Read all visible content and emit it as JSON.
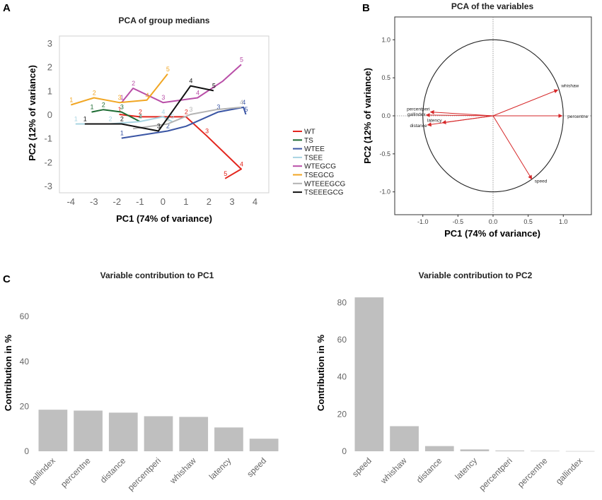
{
  "panel_labels": {
    "a": "A",
    "b": "B",
    "c": "C"
  },
  "colors": {
    "WT": "#e3261e",
    "TS": "#1d6b32",
    "WTEE": "#3a55a4",
    "TSEE": "#a8d4e2",
    "WTEGCG": "#b94fa8",
    "TSEGCG": "#f1a623",
    "WTEEEGCG": "#b3b3b3",
    "TSEEEGCG": "#111111",
    "bar": "#bfbfbf",
    "arrow": "#d62728",
    "circle": "#222222",
    "ref": "#888888"
  },
  "chart_data": [
    {
      "id": "A",
      "type": "line",
      "title": "PCA of group medians",
      "xlabel": "PC1 (74% of variance)",
      "ylabel": "PC2 (12% of variance)",
      "xlim": [
        -4.5,
        4.6
      ],
      "ylim": [
        -3.3,
        3.3
      ],
      "xticks": [
        -4,
        -3,
        -2,
        -1,
        0,
        1,
        2,
        3,
        4
      ],
      "yticks": [
        -3,
        -2,
        -1,
        0,
        1,
        2,
        3
      ],
      "series": [
        {
          "name": "WT",
          "x": [
            -1.9,
            -1.0,
            0.2,
            1.0,
            1.9,
            3.4,
            2.7
          ],
          "y": [
            0.0,
            -0.1,
            -0.1,
            -0.1,
            -0.9,
            -2.3,
            -2.7
          ],
          "labels": [
            "1",
            "2",
            "",
            "2",
            "3",
            "4",
            "5"
          ]
        },
        {
          "name": "TS",
          "x": [
            -3.1,
            -2.6,
            -1.8,
            -1.0
          ],
          "y": [
            0.1,
            0.2,
            0.1,
            -0.3
          ],
          "labels": [
            "1",
            "2",
            "3",
            "4"
          ]
        },
        {
          "name": "WTEE",
          "x": [
            -1.8,
            0.2,
            1.0,
            2.4,
            3.5,
            3.6
          ],
          "y": [
            -1.0,
            -0.7,
            -0.5,
            0.1,
            0.3,
            0.0
          ],
          "labels": [
            "1",
            "2",
            "",
            "3",
            "4",
            "5"
          ]
        },
        {
          "name": "TSEE",
          "x": [
            -3.8,
            -2.3,
            -1.0,
            0.0,
            0.4
          ],
          "y": [
            -0.4,
            -0.4,
            -0.3,
            -0.1,
            -0.3
          ],
          "labels": [
            "1",
            "2",
            "3",
            "4",
            "5"
          ]
        },
        {
          "name": "WTEGCG",
          "x": [
            -1.8,
            -1.3,
            0.0,
            1.5,
            2.6,
            3.4
          ],
          "y": [
            0.5,
            1.1,
            0.5,
            0.7,
            1.4,
            2.1
          ],
          "labels": [
            "1",
            "2",
            "3",
            "4",
            "",
            "5"
          ]
        },
        {
          "name": "TSEGCG",
          "x": [
            -4.0,
            -3.0,
            -1.9,
            -0.7,
            0.2
          ],
          "y": [
            0.4,
            0.7,
            0.5,
            0.6,
            1.7
          ],
          "labels": [
            "1",
            "2",
            "3",
            "4",
            "5"
          ]
        },
        {
          "name": "WTEEEGCG",
          "x": [
            -1.3,
            0.2,
            1.2,
            2.3,
            3.4
          ],
          "y": [
            -0.6,
            -0.4,
            0.0,
            0.2,
            0.3
          ],
          "labels": [
            "",
            "2",
            "3",
            "",
            "4"
          ]
        },
        {
          "name": "TSEEEGCG",
          "x": [
            -3.4,
            -1.8,
            -0.2,
            1.2,
            2.2
          ],
          "y": [
            -0.4,
            -0.4,
            -0.7,
            1.2,
            1.0
          ],
          "labels": [
            "1",
            "2",
            "3",
            "4",
            "5"
          ]
        }
      ]
    },
    {
      "id": "B",
      "type": "scatter",
      "title": "PCA of the variables",
      "xlabel": "PC1 (74% of variance)",
      "ylabel": "PC2 (12% of variance)",
      "xlim": [
        -1.4,
        1.4
      ],
      "ylim": [
        -1.3,
        1.3
      ],
      "xticks": [
        -1.0,
        -0.5,
        0.0,
        0.5,
        1.0
      ],
      "xtick_labels": [
        "-1.0",
        "-0.5",
        "0.0",
        "0.5",
        "1.0"
      ],
      "yticks": [
        1.0,
        0.5,
        0.0,
        -0.5,
        -1.0
      ],
      "ytick_labels": [
        "1.0",
        "0.5",
        "0.0",
        "-0.5",
        "-1.0"
      ],
      "vectors": [
        {
          "name": "whishaw",
          "x": 0.92,
          "y": 0.34
        },
        {
          "name": "percentne",
          "x": 0.98,
          "y": 0.0
        },
        {
          "name": "speed",
          "x": 0.55,
          "y": -0.83
        },
        {
          "name": "percentperi",
          "x": -0.89,
          "y": 0.05
        },
        {
          "name": "gallindex",
          "x": -0.95,
          "y": 0.01
        },
        {
          "name": "latency",
          "x": -0.72,
          "y": -0.09
        },
        {
          "name": "distance",
          "x": -0.93,
          "y": -0.12
        }
      ]
    },
    {
      "id": "C1",
      "type": "bar",
      "title": "Variable contribution to PC1",
      "ylabel": "Contribution in %",
      "ylim": [
        0,
        72
      ],
      "yticks": [
        0,
        20,
        40,
        60
      ],
      "categories": [
        "gallindex",
        "percentne",
        "distance",
        "percentperi",
        "whishaw",
        "latency",
        "speed"
      ],
      "values": [
        18.5,
        18.1,
        17.2,
        15.6,
        15.3,
        10.6,
        5.6
      ]
    },
    {
      "id": "C2",
      "type": "bar",
      "title": "Variable contribution to PC2",
      "ylabel": "Contribution in %",
      "ylim": [
        0,
        87
      ],
      "yticks": [
        0,
        20,
        40,
        60,
        80
      ],
      "categories": [
        "speed",
        "whishaw",
        "distance",
        "latency",
        "percentperi",
        "percentne",
        "gallindex"
      ],
      "values": [
        82.8,
        13.5,
        2.8,
        1.0,
        0.4,
        0.2,
        0.1
      ]
    }
  ]
}
